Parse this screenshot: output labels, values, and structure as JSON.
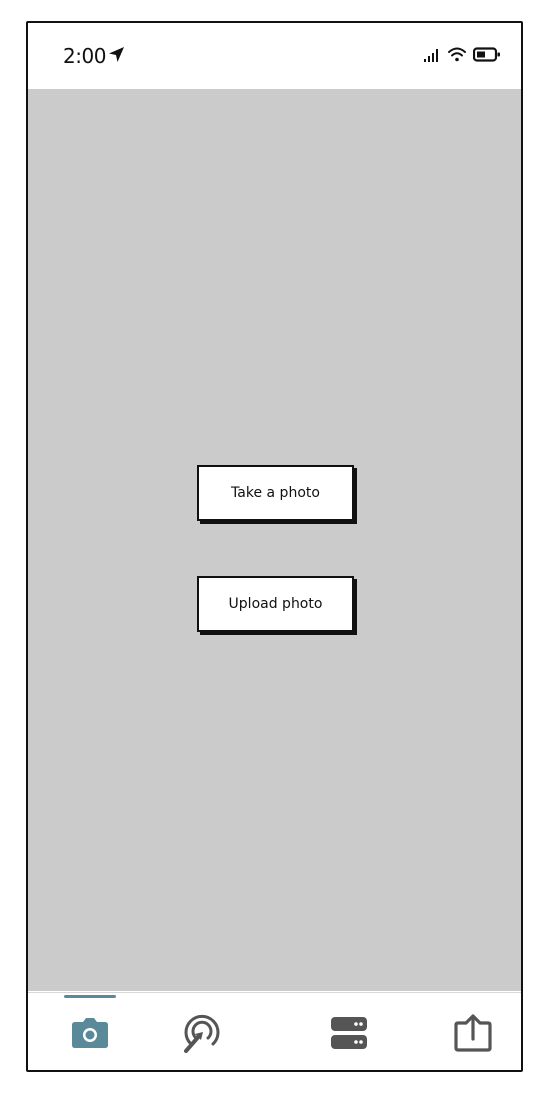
{
  "status_bar": {
    "time": "2:00",
    "icons": [
      "location-arrow-icon",
      "cellular-signal-icon",
      "wifi-icon",
      "battery-icon"
    ]
  },
  "main": {
    "background_color": "#cbcbcb",
    "buttons": {
      "take_photo": "Take a photo",
      "upload_photo": "Upload photo"
    }
  },
  "tab_bar": {
    "active_color": "#5a8a9a",
    "inactive_color": "#555555",
    "tabs": [
      {
        "icon": "camera-icon",
        "active": true
      },
      {
        "icon": "scan-target-icon",
        "active": false
      },
      {
        "icon": "server-icon",
        "active": false
      },
      {
        "icon": "share-upload-icon",
        "active": false
      }
    ]
  }
}
